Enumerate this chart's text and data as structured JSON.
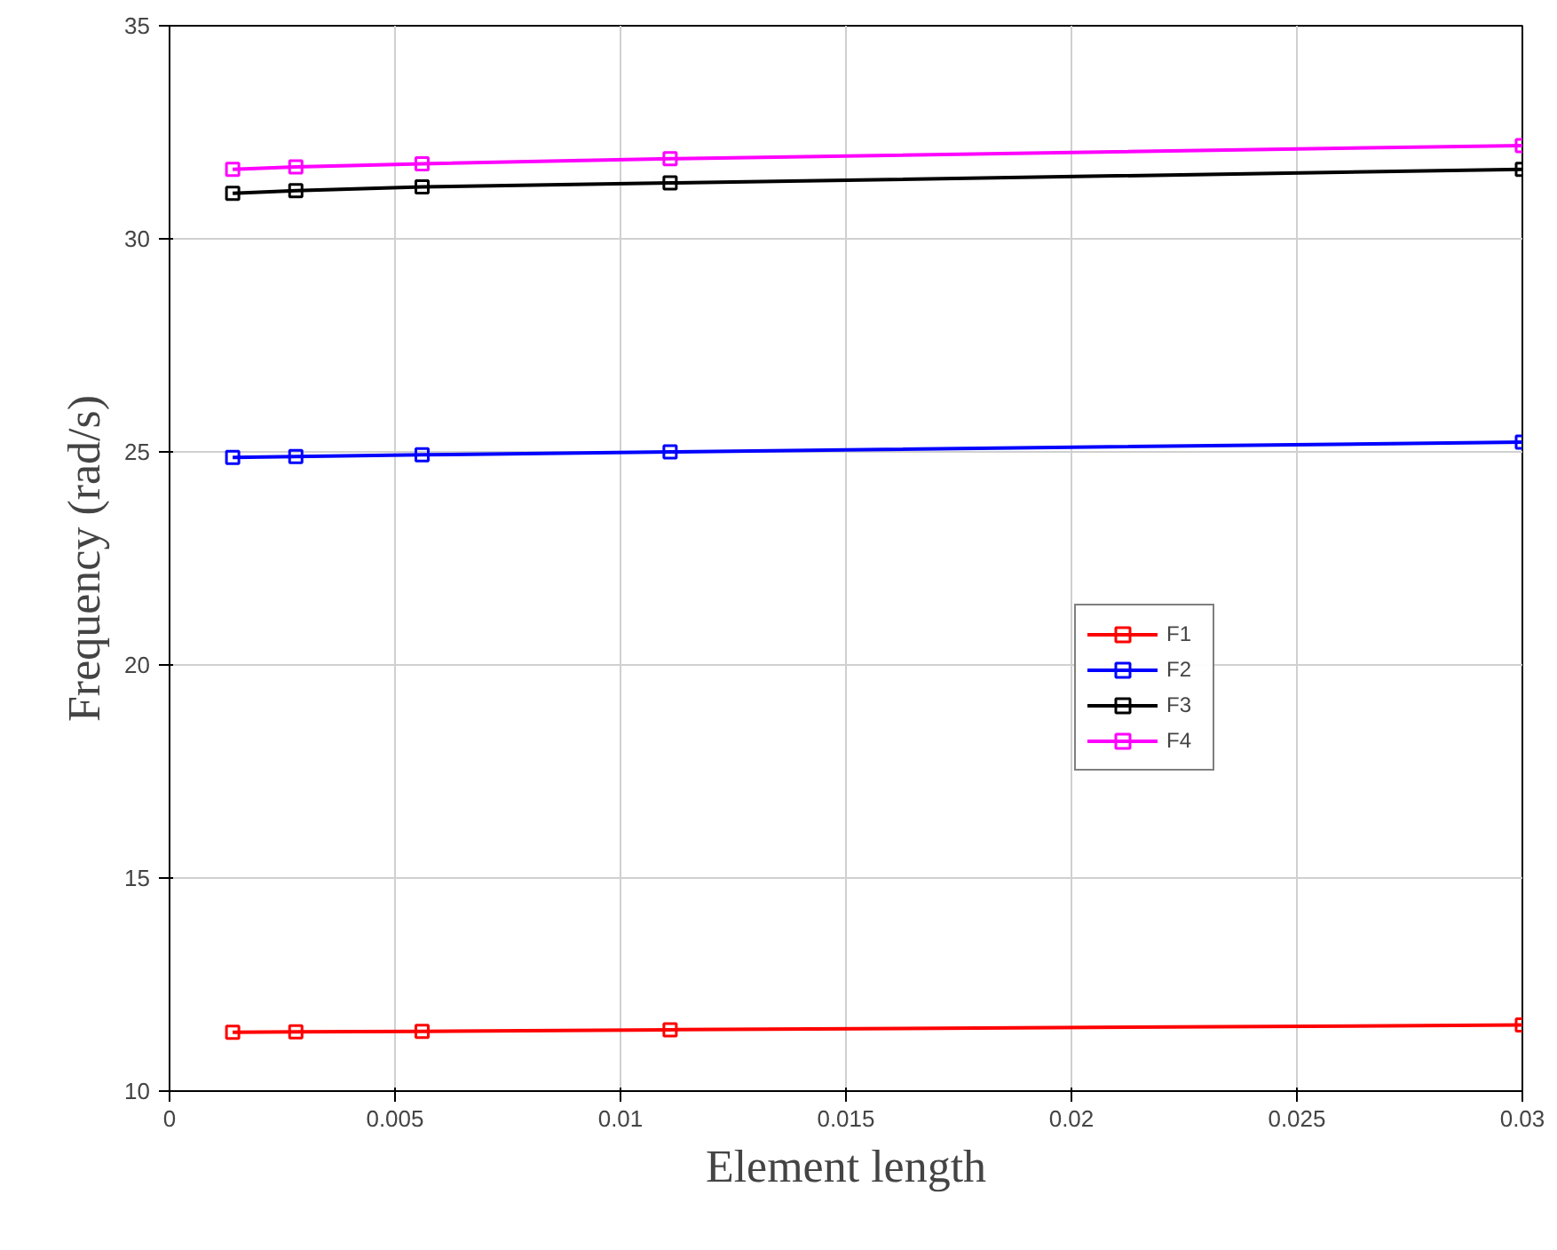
{
  "chart_data": {
    "type": "line",
    "xlabel": "Element length",
    "ylabel": "Frequency (rad/s)",
    "x": [
      0.0014,
      0.0028,
      0.0056,
      0.0111,
      0.03
    ],
    "series": [
      {
        "name": "F1",
        "color": "#ff0000",
        "values": [
          11.38,
          11.39,
          11.4,
          11.44,
          11.55
        ]
      },
      {
        "name": "F2",
        "color": "#0000ff",
        "values": [
          24.87,
          24.89,
          24.93,
          25.0,
          25.23
        ]
      },
      {
        "name": "F3",
        "color": "#000000",
        "values": [
          31.07,
          31.13,
          31.22,
          31.31,
          31.63
        ]
      },
      {
        "name": "F4",
        "color": "#ff00ff",
        "values": [
          31.63,
          31.69,
          31.76,
          31.88,
          32.19
        ]
      }
    ],
    "xlim": [
      0,
      0.03
    ],
    "ylim": [
      10,
      35
    ],
    "xticks": [
      0,
      0.005,
      0.01,
      0.015,
      0.02,
      0.025,
      0.03
    ],
    "yticks": [
      10,
      15,
      20,
      25,
      30,
      35
    ],
    "grid": true,
    "legend": "right",
    "marker": "square",
    "line_style": "solid"
  }
}
